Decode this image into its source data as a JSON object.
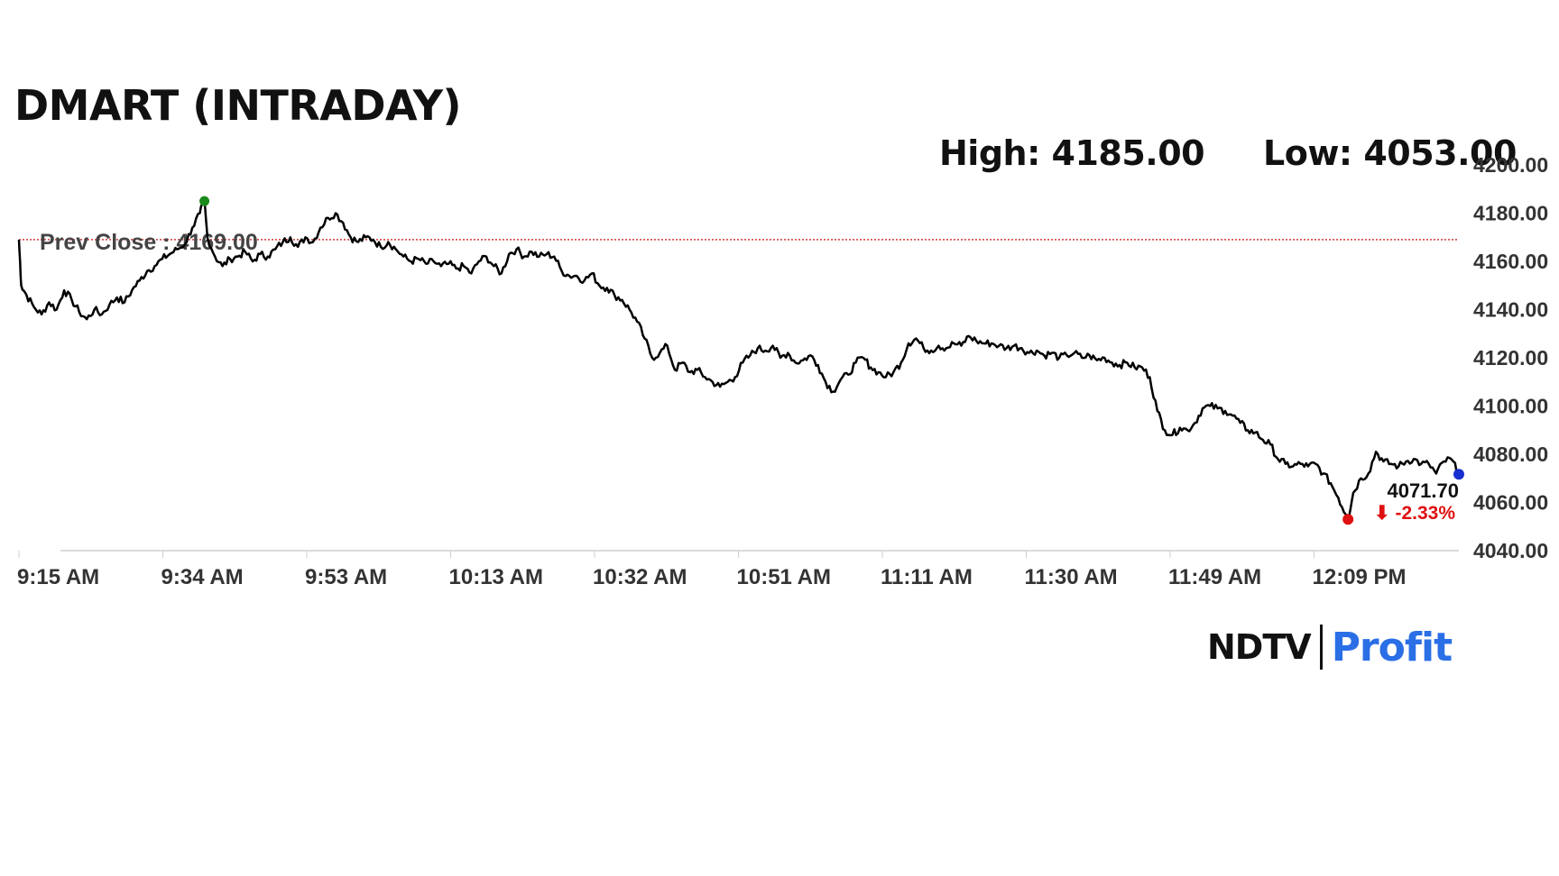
{
  "title": "DMART (INTRADAY)",
  "high_label": "High: 4185.00",
  "low_label": "Low: 4053.00",
  "brand": {
    "left": "NDTV",
    "right": "Profit"
  },
  "colors": {
    "line": "#000000",
    "prev_close": "#d23b3b",
    "high_marker": "#1a8a1a",
    "low_marker": "#e01010",
    "last_marker": "#1a2fd0",
    "change": "#e01010",
    "brand_accent": "#2b6fe6"
  },
  "chart_data": {
    "type": "line",
    "title": "DMART (INTRADAY)",
    "xlabel": "",
    "ylabel": "",
    "x_ticks": [
      "9:15 AM",
      "9:34 AM",
      "9:53 AM",
      "10:13 AM",
      "10:32 AM",
      "10:51 AM",
      "11:11 AM",
      "11:30 AM",
      "11:49 AM",
      "12:09 PM"
    ],
    "y_ticks": [
      "4200.00",
      "4180.00",
      "4160.00",
      "4140.00",
      "4120.00",
      "4100.00",
      "4080.00",
      "4060.00",
      "4040.00"
    ],
    "ylim": [
      4040,
      4200
    ],
    "x_unit": "minutes since 9:15 AM",
    "xlim": [
      0,
      191
    ],
    "prev_close": 4169.0,
    "prev_close_label": "Prev Close : 4169.00",
    "high": 4185.0,
    "low": 4053.0,
    "last": 4071.7,
    "last_label": "4071.70",
    "change_label": "⬇ -2.33%",
    "grid": false,
    "series": [
      {
        "values": [
          [
            0,
            4169
          ],
          [
            0.3,
            4150
          ],
          [
            1,
            4146
          ],
          [
            2,
            4141
          ],
          [
            3,
            4138
          ],
          [
            4,
            4143
          ],
          [
            5,
            4140
          ],
          [
            6,
            4148
          ],
          [
            7,
            4144
          ],
          [
            8,
            4139
          ],
          [
            9,
            4136
          ],
          [
            10,
            4140
          ],
          [
            11,
            4138
          ],
          [
            12,
            4142
          ],
          [
            13,
            4145
          ],
          [
            14,
            4143
          ],
          [
            15,
            4148
          ],
          [
            16,
            4152
          ],
          [
            17,
            4156
          ],
          [
            18,
            4158
          ],
          [
            19,
            4161
          ],
          [
            20,
            4163
          ],
          [
            21,
            4165
          ],
          [
            22,
            4167
          ],
          [
            23,
            4174
          ],
          [
            24,
            4180
          ],
          [
            24.6,
            4185
          ],
          [
            25,
            4170
          ],
          [
            26,
            4162
          ],
          [
            27,
            4158
          ],
          [
            28,
            4161
          ],
          [
            29,
            4162
          ],
          [
            30,
            4164
          ],
          [
            31,
            4160
          ],
          [
            32,
            4163
          ],
          [
            33,
            4162
          ],
          [
            34,
            4165
          ],
          [
            35,
            4168
          ],
          [
            36,
            4170
          ],
          [
            37,
            4166
          ],
          [
            38,
            4170
          ],
          [
            39,
            4168
          ],
          [
            40,
            4174
          ],
          [
            41,
            4178
          ],
          [
            42,
            4180
          ],
          [
            43,
            4176
          ],
          [
            44,
            4170
          ],
          [
            45,
            4168
          ],
          [
            46,
            4170
          ],
          [
            47,
            4169
          ],
          [
            48,
            4166
          ],
          [
            49,
            4168
          ],
          [
            50,
            4165
          ],
          [
            51,
            4162
          ],
          [
            52,
            4160
          ],
          [
            53,
            4161
          ],
          [
            54,
            4159
          ],
          [
            55,
            4160
          ],
          [
            56,
            4158
          ],
          [
            57,
            4159
          ],
          [
            58,
            4157
          ],
          [
            59,
            4158
          ],
          [
            60,
            4155
          ],
          [
            61,
            4160
          ],
          [
            62,
            4162
          ],
          [
            63,
            4158
          ],
          [
            64,
            4155
          ],
          [
            65,
            4163
          ],
          [
            66,
            4165
          ],
          [
            67,
            4162
          ],
          [
            68,
            4164
          ],
          [
            69,
            4162
          ],
          [
            70,
            4163
          ],
          [
            71,
            4162
          ],
          [
            72,
            4156
          ],
          [
            73,
            4154
          ],
          [
            74,
            4154
          ],
          [
            75,
            4152
          ],
          [
            76,
            4155
          ],
          [
            77,
            4150
          ],
          [
            78,
            4149
          ],
          [
            79,
            4146
          ],
          [
            80,
            4144
          ],
          [
            81,
            4140
          ],
          [
            82,
            4135
          ],
          [
            83,
            4128
          ],
          [
            84,
            4120
          ],
          [
            85,
            4122
          ],
          [
            86,
            4125
          ],
          [
            87,
            4115
          ],
          [
            88,
            4118
          ],
          [
            89,
            4114
          ],
          [
            90,
            4115
          ],
          [
            91,
            4112
          ],
          [
            92,
            4110
          ],
          [
            93,
            4108
          ],
          [
            94,
            4110
          ],
          [
            95,
            4112
          ],
          [
            96,
            4118
          ],
          [
            97,
            4121
          ],
          [
            98,
            4124
          ],
          [
            99,
            4123
          ],
          [
            100,
            4125
          ],
          [
            101,
            4120
          ],
          [
            102,
            4122
          ],
          [
            103,
            4118
          ],
          [
            104,
            4119
          ],
          [
            105,
            4121
          ],
          [
            106,
            4117
          ],
          [
            107,
            4110
          ],
          [
            108,
            4106
          ],
          [
            109,
            4111
          ],
          [
            110,
            4113
          ],
          [
            111,
            4118
          ],
          [
            112,
            4120
          ],
          [
            113,
            4116
          ],
          [
            114,
            4114
          ],
          [
            115,
            4112
          ],
          [
            116,
            4114
          ],
          [
            117,
            4118
          ],
          [
            118,
            4126
          ],
          [
            119,
            4128
          ],
          [
            120,
            4124
          ],
          [
            121,
            4123
          ],
          [
            122,
            4125
          ],
          [
            123,
            4124
          ],
          [
            124,
            4126
          ],
          [
            125,
            4125
          ],
          [
            126,
            4129
          ],
          [
            127,
            4127
          ],
          [
            128,
            4126
          ],
          [
            129,
            4126
          ],
          [
            130,
            4125
          ],
          [
            131,
            4124
          ],
          [
            132,
            4125
          ],
          [
            133,
            4124
          ],
          [
            134,
            4122
          ],
          [
            135,
            4123
          ],
          [
            136,
            4121
          ],
          [
            137,
            4122
          ],
          [
            138,
            4120
          ],
          [
            139,
            4121
          ],
          [
            140,
            4122
          ],
          [
            141,
            4120
          ],
          [
            142,
            4121
          ],
          [
            143,
            4119
          ],
          [
            144,
            4120
          ],
          [
            145,
            4118
          ],
          [
            146,
            4117
          ],
          [
            147,
            4118
          ],
          [
            148,
            4116
          ],
          [
            149,
            4116
          ],
          [
            150,
            4112
          ],
          [
            151,
            4098
          ],
          [
            152,
            4090
          ],
          [
            153,
            4088
          ],
          [
            154,
            4091
          ],
          [
            155,
            4090
          ],
          [
            156,
            4093
          ],
          [
            157,
            4099
          ],
          [
            158,
            4100
          ],
          [
            159,
            4099
          ],
          [
            160,
            4098
          ],
          [
            161,
            4096
          ],
          [
            162,
            4093
          ],
          [
            163,
            4090
          ],
          [
            164,
            4089
          ],
          [
            165,
            4086
          ],
          [
            166,
            4084
          ],
          [
            167,
            4078
          ],
          [
            168,
            4076
          ],
          [
            169,
            4075
          ],
          [
            170,
            4076
          ],
          [
            171,
            4075
          ],
          [
            172,
            4076
          ],
          [
            173,
            4072
          ],
          [
            174,
            4068
          ],
          [
            175,
            4062
          ],
          [
            176,
            4055
          ],
          [
            176.3,
            4053
          ],
          [
            177,
            4064
          ],
          [
            178,
            4070
          ],
          [
            179,
            4072
          ],
          [
            180,
            4081
          ],
          [
            181,
            4077
          ],
          [
            182,
            4076
          ],
          [
            183,
            4075
          ],
          [
            184,
            4077
          ],
          [
            185,
            4078
          ],
          [
            186,
            4076
          ],
          [
            187,
            4076
          ],
          [
            188,
            4072
          ],
          [
            189,
            4077
          ],
          [
            190,
            4078
          ],
          [
            191,
            4071.7
          ]
        ]
      }
    ]
  }
}
